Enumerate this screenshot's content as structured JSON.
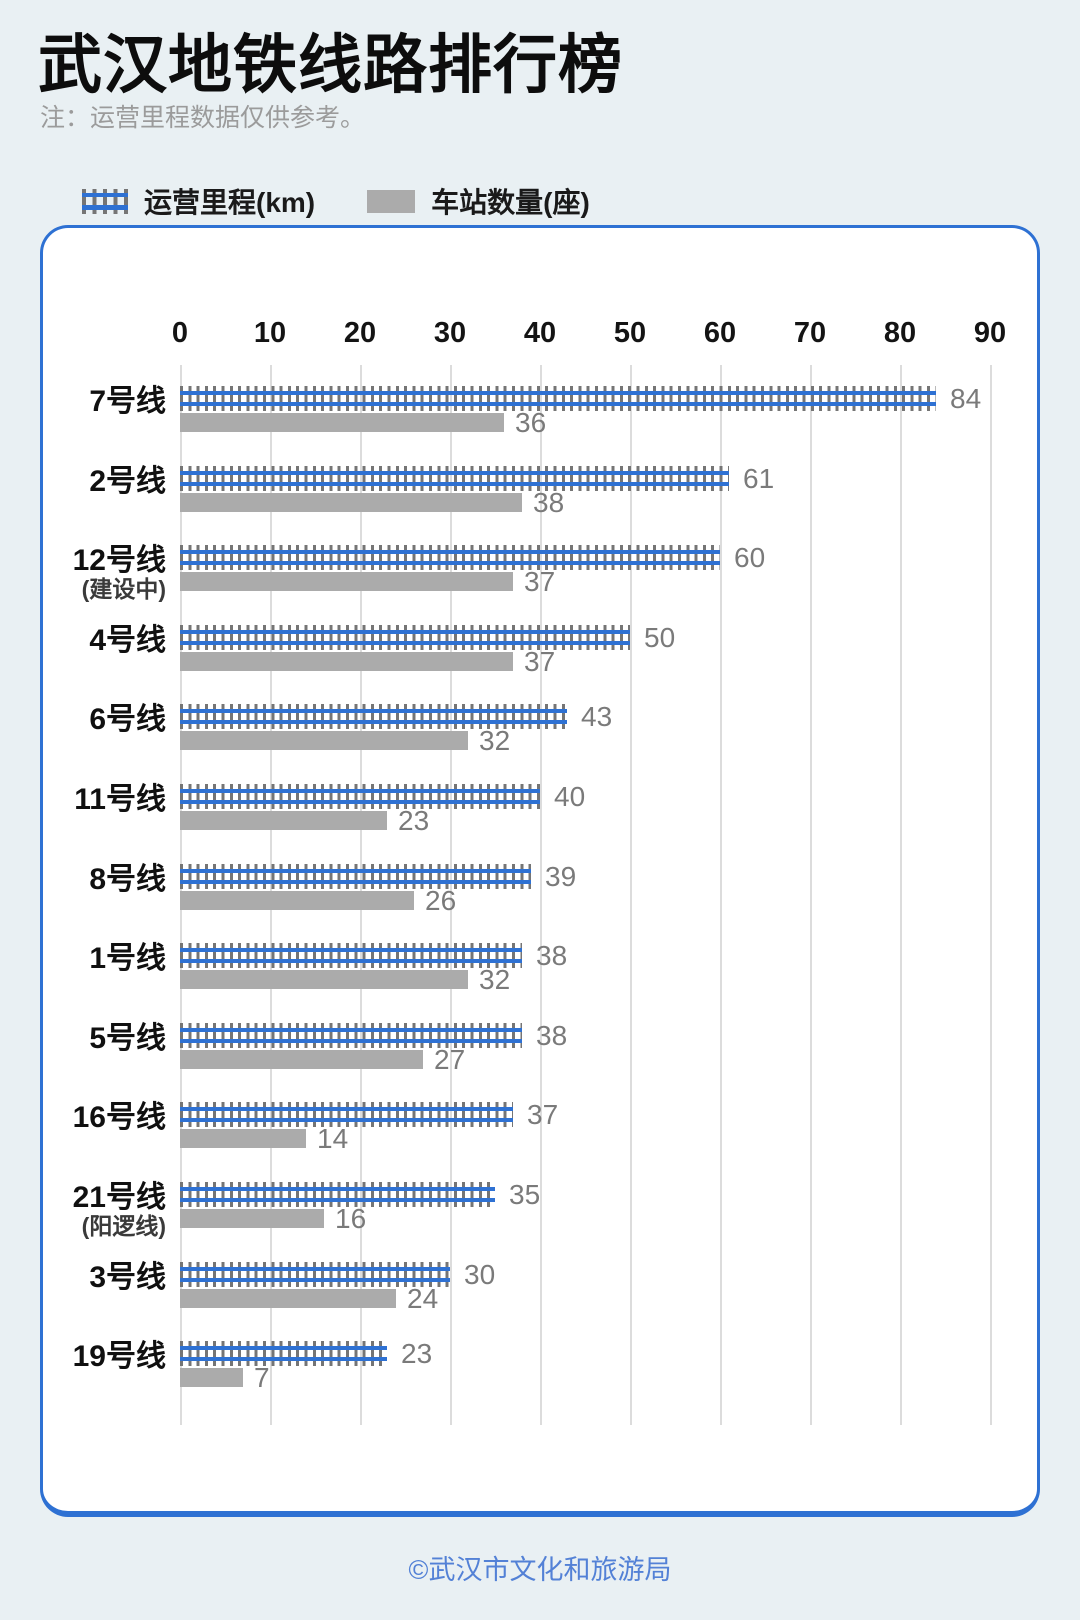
{
  "header": {
    "title": "武汉地铁线路排行榜",
    "note": "注：运营里程数据仅供参考。"
  },
  "legend": {
    "mileage_label": "运营里程(km)",
    "stations_label": "车站数量(座)"
  },
  "chart_data": {
    "type": "bar",
    "orientation": "horizontal",
    "title": "武汉地铁线路排行榜",
    "xlabel": "",
    "ylabel": "",
    "x_axis": {
      "ticks": [
        0,
        10,
        20,
        30,
        40,
        50,
        60,
        70,
        80,
        90
      ],
      "min": 0,
      "max": 90
    },
    "grid": true,
    "legend_position": "top",
    "categories": [
      {
        "label": "7号线",
        "sublabel": ""
      },
      {
        "label": "2号线",
        "sublabel": ""
      },
      {
        "label": "12号线",
        "sublabel": "(建设中)"
      },
      {
        "label": "4号线",
        "sublabel": ""
      },
      {
        "label": "6号线",
        "sublabel": ""
      },
      {
        "label": "11号线",
        "sublabel": ""
      },
      {
        "label": "8号线",
        "sublabel": ""
      },
      {
        "label": "1号线",
        "sublabel": ""
      },
      {
        "label": "5号线",
        "sublabel": ""
      },
      {
        "label": "16号线",
        "sublabel": ""
      },
      {
        "label": "21号线",
        "sublabel": "(阳逻线)"
      },
      {
        "label": "3号线",
        "sublabel": ""
      },
      {
        "label": "19号线",
        "sublabel": ""
      }
    ],
    "series": [
      {
        "name": "运营里程(km)",
        "style": "railway-track",
        "values": [
          84,
          61,
          60,
          50,
          43,
          40,
          39,
          38,
          38,
          37,
          35,
          30,
          23
        ]
      },
      {
        "name": "车站数量(座)",
        "style": "gray-bar",
        "values": [
          36,
          38,
          37,
          37,
          32,
          23,
          26,
          32,
          27,
          14,
          16,
          24,
          7
        ]
      }
    ]
  },
  "footer": {
    "credit": "©武汉市文化和旅游局"
  },
  "colors": {
    "rail_blue": "#2e71d3",
    "tie_gray": "#757575",
    "station_gray": "#ababab",
    "grid_gray": "#dcdcdc",
    "value_gray": "#7a7a7a",
    "card_border": "#2e71d3",
    "footer_blue": "#5381d6",
    "background": "#e9f0f3"
  }
}
